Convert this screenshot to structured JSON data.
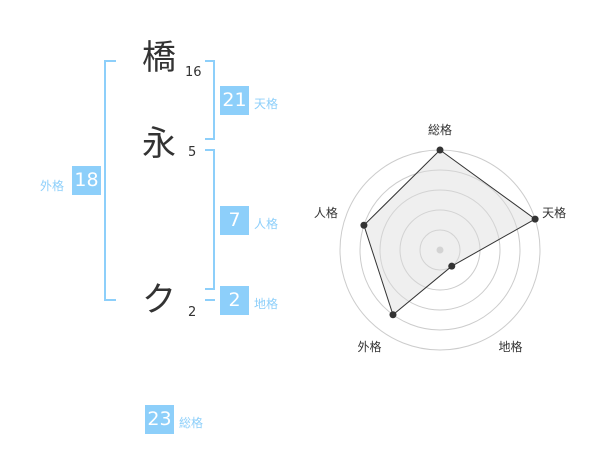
{
  "name": {
    "chars": [
      {
        "char": "橋",
        "strokes": "16"
      },
      {
        "char": "永",
        "strokes": "5"
      },
      {
        "char": "ク",
        "strokes": "2"
      }
    ]
  },
  "fortunes": {
    "tenkaku": {
      "label": "天格",
      "value": "21"
    },
    "jinkaku": {
      "label": "人格",
      "value": "7"
    },
    "chikaku": {
      "label": "地格",
      "value": "2"
    },
    "gaikaku": {
      "label": "外格",
      "value": "18"
    },
    "soukaku": {
      "label": "総格",
      "value": "23"
    }
  },
  "accent_color": "#8dcffa",
  "chart_data": {
    "type": "radar",
    "axes": [
      "総格",
      "天格",
      "地格",
      "外格",
      "人格"
    ],
    "values": [
      5,
      5,
      1,
      4,
      4
    ],
    "range": [
      0,
      5
    ],
    "rings": 5
  }
}
